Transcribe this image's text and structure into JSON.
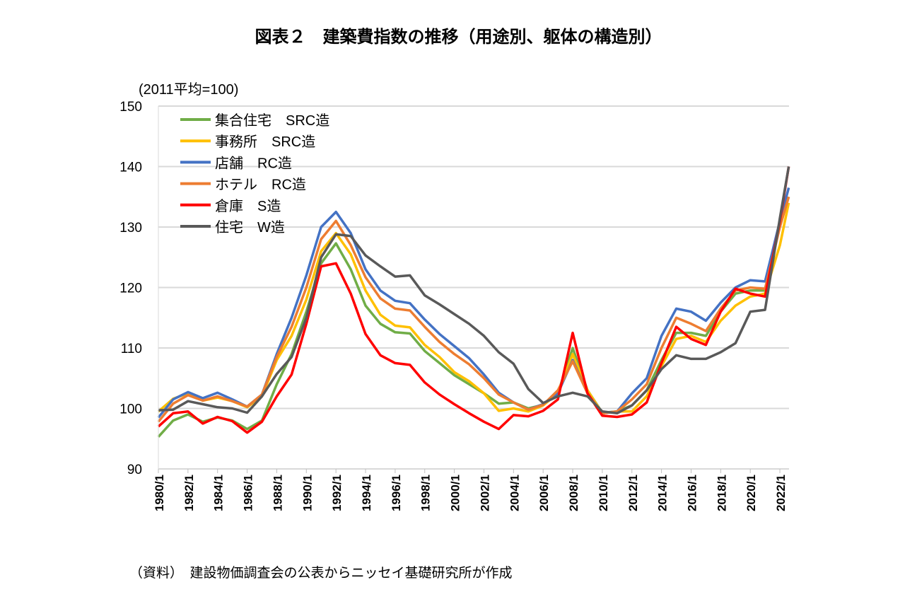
{
  "chart_data": {
    "type": "line",
    "title": "図表２　建築費指数の推移（用途別、躯体の構造別）",
    "unit_label": "(2011平均=100)",
    "source": "（資料）　建設物価調査会の公表からニッセイ基礎研究所が作成",
    "ylim": [
      90,
      150
    ],
    "yticks": [
      90,
      100,
      110,
      120,
      130,
      140,
      150
    ],
    "xlim": [
      1980,
      2022.6
    ],
    "xtick_labels": [
      "1980/1",
      "1982/1",
      "1984/1",
      "1986/1",
      "1988/1",
      "1990/1",
      "1992/1",
      "1994/1",
      "1996/1",
      "1998/1",
      "2000/1",
      "2002/1",
      "2004/1",
      "2006/1",
      "2008/1",
      "2010/1",
      "2012/1",
      "2014/1",
      "2016/1",
      "2018/1",
      "2020/1",
      "2022/1"
    ],
    "grid": "horizontal",
    "legend_position": "top-left",
    "x": [
      1980,
      1981,
      1982,
      1983,
      1984,
      1985,
      1986,
      1987,
      1988,
      1989,
      1990,
      1991,
      1992,
      1993,
      1994,
      1995,
      1996,
      1997,
      1998,
      1999,
      2000,
      2001,
      2002,
      2003,
      2004,
      2005,
      2006,
      2007,
      2008,
      2009,
      2010,
      2011,
      2012,
      2013,
      2014,
      2015,
      2016,
      2017,
      2018,
      2019,
      2020,
      2021,
      2022,
      2022.6
    ],
    "series": [
      {
        "name": "集合住宅　SRC造",
        "color": "#70ad47",
        "values": [
          95.3,
          98,
          99,
          97.8,
          98.5,
          98,
          96.6,
          98,
          104,
          109,
          116,
          124,
          127.3,
          123,
          117,
          114,
          112.6,
          112.4,
          109.5,
          107.5,
          105.5,
          104,
          102.5,
          100.8,
          101,
          100,
          100.6,
          102.5,
          110,
          103,
          99.3,
          99.5,
          100.5,
          103,
          108,
          112.5,
          112.5,
          112,
          116,
          119,
          119.5,
          119.5,
          131,
          135
        ]
      },
      {
        "name": "事務所　SRC造",
        "color": "#ffc000",
        "values": [
          99.5,
          101.6,
          102.5,
          101.3,
          101.8,
          101.2,
          100.2,
          102,
          108,
          112,
          118,
          126,
          129,
          125.5,
          119.5,
          115.5,
          113.7,
          113.4,
          110.5,
          108.5,
          106,
          104.5,
          102.5,
          99.6,
          100,
          99.5,
          100.5,
          102.5,
          109,
          103,
          99.2,
          99.5,
          99.5,
          102,
          107,
          111.5,
          112,
          111,
          114.5,
          117,
          118.5,
          119,
          127,
          134
        ]
      },
      {
        "name": "店舗　RC造",
        "color": "#4472c4",
        "values": [
          98.5,
          101.5,
          102.7,
          101.7,
          102.6,
          101.5,
          100.3,
          102.3,
          109,
          115,
          122,
          130,
          132.5,
          129,
          123,
          119.5,
          117.8,
          117.4,
          114.7,
          112.3,
          110.3,
          108.3,
          105.6,
          102.6,
          101,
          99.8,
          100.7,
          102.5,
          108,
          102.5,
          99.2,
          99.5,
          102.5,
          105,
          112,
          116.5,
          116,
          114.5,
          117.5,
          120,
          121.2,
          121,
          131,
          136.5
        ]
      },
      {
        "name": "ホテル　RC造",
        "color": "#ed7d31",
        "values": [
          97.8,
          100.8,
          102.2,
          101.3,
          102,
          101.2,
          100.3,
          102.3,
          108.5,
          113.5,
          120,
          128,
          131,
          127,
          121.7,
          118.2,
          116.5,
          116.2,
          113.5,
          111,
          109,
          107.3,
          105,
          102.3,
          101,
          99.8,
          100.6,
          103,
          107.8,
          102.5,
          99.2,
          99.5,
          101.5,
          104,
          110,
          115,
          114,
          112.8,
          116.5,
          119.5,
          120,
          119.8,
          130,
          135
        ]
      },
      {
        "name": "倉庫　S造",
        "color": "#ff0000",
        "values": [
          97,
          99.2,
          99.5,
          97.5,
          98.6,
          97.9,
          96,
          97.8,
          102,
          105.6,
          114,
          123.5,
          124,
          119,
          112.3,
          108.8,
          107.5,
          107.2,
          104.3,
          102.3,
          100.7,
          99.2,
          97.8,
          96.6,
          98.9,
          98.7,
          99.6,
          101.5,
          112.5,
          102.5,
          98.8,
          98.6,
          99,
          101,
          107.5,
          113.5,
          111.5,
          110.5,
          116,
          119.8,
          119,
          118.5,
          131,
          140
        ]
      },
      {
        "name": "住宅　W造",
        "color": "#595959",
        "values": [
          99.7,
          99.8,
          101.2,
          100.7,
          100.2,
          100,
          99.3,
          102,
          105.7,
          108.5,
          115,
          125,
          128.8,
          128.5,
          125.3,
          123.5,
          121.8,
          122,
          118.7,
          117.2,
          115.6,
          114,
          112,
          109.3,
          107.4,
          103.2,
          100.9,
          102,
          102.6,
          102,
          99.5,
          99.2,
          100.5,
          103,
          106.5,
          108.8,
          108.2,
          108.2,
          109.3,
          110.8,
          116,
          116.3,
          131.5,
          140
        ]
      }
    ]
  }
}
